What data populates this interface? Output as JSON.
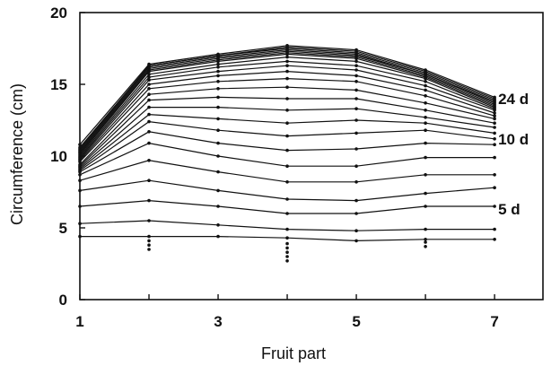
{
  "chart_data": {
    "type": "line",
    "xlabel": "Fruit part",
    "ylabel": "Circumference (cm)",
    "xlim": [
      1,
      7.7
    ],
    "ylim": [
      0,
      20
    ],
    "x": [
      1,
      2,
      3,
      4,
      5,
      6,
      7
    ],
    "x_ticks": [
      "1",
      "3",
      "5",
      "7"
    ],
    "y_ticks": [
      "0",
      "5",
      "10",
      "15",
      "20"
    ],
    "grid": false,
    "legend": "none",
    "line_color": "#111111",
    "series": [
      {
        "values": [
          4.4,
          4.4,
          4.4,
          4.3,
          4.1,
          4.2,
          4.2
        ]
      },
      {
        "values": [
          5.3,
          5.5,
          5.2,
          4.9,
          4.8,
          4.9,
          4.9
        ]
      },
      {
        "values": [
          6.5,
          6.9,
          6.5,
          6.0,
          6.0,
          6.5,
          6.5
        ]
      },
      {
        "values": [
          7.6,
          8.3,
          7.6,
          7.0,
          6.9,
          7.4,
          7.8
        ]
      },
      {
        "values": [
          8.3,
          9.7,
          8.9,
          8.2,
          8.2,
          8.7,
          8.7
        ]
      },
      {
        "values": [
          8.7,
          10.9,
          10.0,
          9.3,
          9.3,
          9.9,
          9.9
        ]
      },
      {
        "values": [
          8.9,
          11.7,
          10.9,
          10.4,
          10.5,
          10.9,
          10.8
        ]
      },
      {
        "values": [
          9.0,
          12.4,
          11.8,
          11.4,
          11.6,
          11.8,
          11.2
        ]
      },
      {
        "values": [
          9.1,
          12.9,
          12.6,
          12.3,
          12.5,
          12.3,
          11.6
        ]
      },
      {
        "values": [
          9.2,
          13.4,
          13.4,
          13.2,
          13.3,
          12.7,
          12.0
        ]
      },
      {
        "values": [
          9.3,
          13.9,
          14.1,
          14.0,
          14.0,
          13.2,
          12.3
        ]
      },
      {
        "values": [
          9.4,
          14.3,
          14.7,
          14.8,
          14.6,
          13.7,
          12.6
        ]
      },
      {
        "values": [
          9.6,
          14.7,
          15.2,
          15.4,
          15.2,
          14.2,
          12.8
        ]
      },
      {
        "values": [
          9.7,
          15.0,
          15.6,
          15.9,
          15.6,
          14.6,
          13.0
        ]
      },
      {
        "values": [
          9.8,
          15.3,
          15.9,
          16.3,
          16.0,
          14.9,
          13.2
        ]
      },
      {
        "values": [
          9.9,
          15.5,
          16.2,
          16.6,
          16.3,
          15.2,
          13.3
        ]
      },
      {
        "values": [
          10.0,
          15.7,
          16.4,
          16.9,
          16.6,
          15.4,
          13.4
        ]
      },
      {
        "values": [
          10.1,
          15.9,
          16.6,
          17.1,
          16.8,
          15.5,
          13.5
        ]
      },
      {
        "values": [
          10.2,
          16.0,
          16.7,
          17.2,
          16.9,
          15.6,
          13.6
        ]
      },
      {
        "values": [
          10.3,
          16.1,
          16.8,
          17.3,
          17.0,
          15.7,
          13.7
        ]
      },
      {
        "values": [
          10.4,
          16.2,
          16.9,
          17.4,
          17.1,
          15.7,
          13.8
        ]
      },
      {
        "values": [
          10.5,
          16.3,
          17.0,
          17.5,
          17.2,
          15.8,
          13.9
        ]
      },
      {
        "values": [
          10.6,
          16.3,
          17.0,
          17.6,
          17.3,
          15.9,
          14.0
        ]
      },
      {
        "values": [
          10.8,
          16.4,
          17.1,
          17.7,
          17.4,
          16.0,
          14.1
        ]
      }
    ],
    "extra_points": [
      {
        "x": 2,
        "y": 4.1
      },
      {
        "x": 2,
        "y": 3.8
      },
      {
        "x": 2,
        "y": 3.5
      },
      {
        "x": 4,
        "y": 3.9
      },
      {
        "x": 4,
        "y": 3.6
      },
      {
        "x": 4,
        "y": 3.3
      },
      {
        "x": 4,
        "y": 3.0
      },
      {
        "x": 4,
        "y": 2.7
      },
      {
        "x": 6,
        "y": 4.0
      },
      {
        "x": 6,
        "y": 3.7
      }
    ],
    "annotations": [
      {
        "text": "24 d",
        "x": 7,
        "y": 14.0
      },
      {
        "text": "10 d",
        "x": 7,
        "y": 11.2
      },
      {
        "text": "5 d",
        "x": 7,
        "y": 6.3
      }
    ]
  }
}
